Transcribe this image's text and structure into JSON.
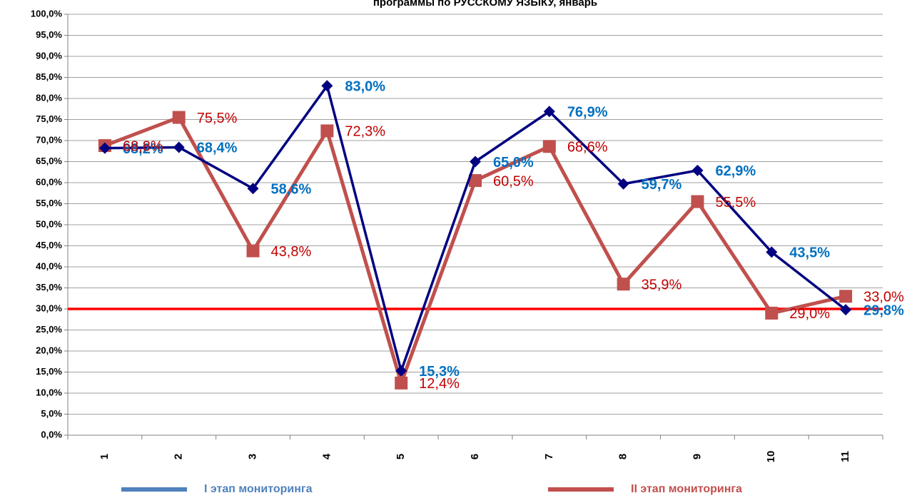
{
  "chart_data": {
    "type": "line",
    "title": "программы по РУССКОМУ ЯЗЫКУ, январь",
    "categories": [
      "1",
      "2",
      "3",
      "4",
      "5",
      "6",
      "7",
      "8",
      "9",
      "10",
      "11"
    ],
    "series": [
      {
        "name": "I этап мониторинга",
        "color": "#000080",
        "label_color": "#0070c0",
        "legend_color": "#4f81bd",
        "marker": "diamond",
        "values": [
          68.2,
          68.4,
          58.6,
          83.0,
          15.3,
          65.0,
          76.9,
          59.7,
          62.9,
          43.5,
          29.8
        ],
        "value_labels": [
          "68,2%",
          "68,4%",
          "58,6%",
          "83,0%",
          "15,3%",
          "65,0%",
          "76,9%",
          "59,7%",
          "62,9%",
          "43,5%",
          "29,8%"
        ]
      },
      {
        "name": "II этап мониторинга",
        "color": "#c0504d",
        "label_color": "#c00000",
        "legend_color": "#c0504d",
        "marker": "square",
        "values": [
          68.8,
          75.5,
          43.8,
          72.3,
          12.4,
          60.5,
          68.6,
          35.9,
          55.5,
          29.0,
          33.0
        ],
        "value_labels": [
          "68,8%",
          "75,5%",
          "43,8%",
          "72,3%",
          "12,4%",
          "60,5%",
          "68,6%",
          "35,9%",
          "55,5%",
          "29,0%",
          "33,0%"
        ]
      }
    ],
    "reference_line": {
      "value": 30,
      "color": "#ff0000"
    },
    "ylim": [
      0,
      100
    ],
    "yticks": [
      {
        "value": 0,
        "label": "0,0%"
      },
      {
        "value": 5,
        "label": "5,0%"
      },
      {
        "value": 10,
        "label": "10,0%"
      },
      {
        "value": 15,
        "label": "15,0%"
      },
      {
        "value": 20,
        "label": "20,0%"
      },
      {
        "value": 25,
        "label": "25,0%"
      },
      {
        "value": 30,
        "label": "30,0%"
      },
      {
        "value": 35,
        "label": "35,0%"
      },
      {
        "value": 40,
        "label": "40,0%"
      },
      {
        "value": 45,
        "label": "45,0%"
      },
      {
        "value": 50,
        "label": "50,0%"
      },
      {
        "value": 55,
        "label": "55,0%"
      },
      {
        "value": 60,
        "label": "60,0%"
      },
      {
        "value": 65,
        "label": "65,0%"
      },
      {
        "value": 70,
        "label": "70,0%"
      },
      {
        "value": 75,
        "label": "75,0%"
      },
      {
        "value": 80,
        "label": "80,0%"
      },
      {
        "value": 85,
        "label": "85,0%"
      },
      {
        "value": 90,
        "label": "90,0%"
      },
      {
        "value": 95,
        "label": "95,0%"
      },
      {
        "value": 100,
        "label": "100,0%"
      }
    ],
    "grid": true,
    "legend": "bottom"
  }
}
